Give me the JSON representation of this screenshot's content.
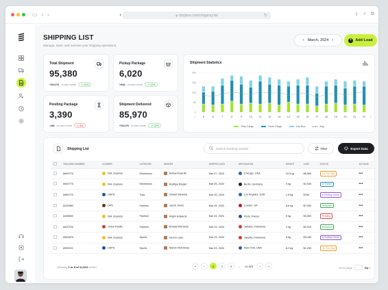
{
  "browser": {
    "url": "dropbox.com/shipping-list",
    "traffic_lights": [
      "#ff5f57",
      "#febc2e",
      "#28c840"
    ]
  },
  "sidebar": {
    "items": [
      "dashboard-icon",
      "truck-icon",
      "document-icon",
      "users-icon",
      "clock-icon",
      "settings-icon"
    ],
    "bottom_items": [
      "headset-icon",
      "gear-icon",
      "logout-icon"
    ],
    "active_index": 2
  },
  "header": {
    "title": "SHIPPING LIST",
    "subtitle": "Manage, track, and oversee your shipping operations.",
    "date_label": "March, 2024",
    "add_button": "Add Load"
  },
  "colors": {
    "accent": "#c8f03c",
    "ship_cargo": "#a6e22e",
    "truck_cargo": "#1f8fb3",
    "car_box": "#7fd4e6",
    "avg": "#9aa0a6"
  },
  "stats": [
    {
      "title": "Total Shipment",
      "value": "95,380",
      "delta": "+19,176",
      "period": "vs last month",
      "pct": "12%",
      "trend": "up",
      "icon": "truck-icon"
    },
    {
      "title": "Pickup Package",
      "value": "6,020",
      "delta": "+442",
      "period": "vs last month",
      "pct": "12%",
      "trend": "up",
      "icon": "basket-icon"
    },
    {
      "title": "Pending Package",
      "value": "3,390",
      "delta": "-136",
      "period": "vs last month",
      "pct": "4%",
      "trend": "down",
      "icon": "hourglass-icon"
    },
    {
      "title": "Shipment Delivered",
      "value": "85,970",
      "delta": "+19,176",
      "period": "vs last month",
      "pct": "12%",
      "trend": "up",
      "icon": "box-icon"
    }
  ],
  "chart": {
    "title": "Shipment Statistics",
    "legend": [
      "Ship Cargo",
      "Truck Cargo",
      "Car Box",
      "Avg"
    ]
  },
  "chart_data": {
    "type": "bar",
    "title": "Shipment Statistics",
    "x": [
      5,
      6,
      7,
      8,
      9,
      10,
      11,
      12,
      13,
      14,
      15,
      16,
      17,
      18,
      19,
      20,
      21,
      22
    ],
    "ylim": [
      0,
      200
    ],
    "y_ticks": [
      "0",
      "5k",
      "10k",
      "15k",
      "20k"
    ],
    "series": [
      {
        "name": "Ship Cargo",
        "values": [
          40,
          35,
          40,
          55,
          40,
          45,
          40,
          45,
          35,
          50,
          40,
          40,
          30,
          40,
          45,
          35,
          40,
          35
        ]
      },
      {
        "name": "Truck Cargo",
        "values": [
          60,
          70,
          95,
          105,
          100,
          80,
          115,
          95,
          100,
          80,
          95,
          95,
          65,
          90,
          90,
          85,
          90,
          95
        ]
      },
      {
        "name": "Car Box",
        "values": [
          30,
          25,
          35,
          25,
          40,
          35,
          30,
          35,
          30,
          25,
          30,
          40,
          35,
          25,
          30,
          35,
          30,
          25
        ]
      },
      {
        "name": "Avg",
        "values": [
          85,
          80,
          92,
          100,
          95,
          88,
          105,
          95,
          98,
          85,
          95,
          95,
          75,
          90,
          92,
          88,
          95,
          105
        ]
      }
    ],
    "grid": true,
    "legend_position": "bottom"
  },
  "table": {
    "title": "Shipping List",
    "search_placeholder": "Search tracking number",
    "filter_label": "Filter",
    "export_label": "Export Data",
    "columns": [
      "TRACKING NUMBER",
      "COURIER",
      "CATEGORY",
      "SENDER",
      "SHIPPED DATE",
      "DESTINATION",
      "WEIGHT",
      "COST",
      "STATUS",
      "ACTIONS"
    ],
    "rows": [
      {
        "tracking": "#609776",
        "courier": "DHL Express",
        "category": "Electronics",
        "sender": "Muhammad Ali",
        "date": "Mar 27, 2024",
        "destination": "Chicago, USA",
        "weight": "24.5 kg",
        "cost": "$5,580",
        "status": "On The Way"
      },
      {
        "tracking": "#540775",
        "courier": "DHL Express",
        "category": "Electronics",
        "sender": "Raditya Rasyid",
        "date": "Mar 25, 2024",
        "destination": "Berlin, Germany",
        "weight": "3 kg",
        "cost": "$2,540",
        "status": "In Transit"
      },
      {
        "tracking": "#980775",
        "courier": "USPS",
        "category": "Toys",
        "sender": "Darrell Steward",
        "date": "Mar 25, 2024",
        "destination": "Los Angeles, USA",
        "weight": "1.5 kg",
        "cost": "$780",
        "status": "In Sorting Centre"
      },
      {
        "tracking": "#230980",
        "courier": "UPS",
        "category": "Fashion",
        "sender": "Jacob Jones",
        "date": "Mar 24, 2024",
        "destination": "London, UK",
        "weight": "8.6 kg",
        "cost": "$7,990",
        "status": "Delivered"
      },
      {
        "tracking": "#445600",
        "courier": "DHL Express",
        "category": "Fashion",
        "sender": "Ralph Edwards",
        "date": "Mar 24, 2024",
        "destination": "Paris, France",
        "weight": "5 kg",
        "cost": "$3,300",
        "status": "Pending"
      },
      {
        "tracking": "#610706",
        "courier": "Union Pacific",
        "category": "Fashion",
        "sender": "Ronald Richards",
        "date": "Mar 24, 2024",
        "destination": "Jakarta, Indonesia",
        "weight": "4 kg",
        "cost": "$2,010",
        "status": "Delivered"
      },
      {
        "tracking": "#542876",
        "courier": "DHL Express",
        "category": "Sports",
        "sender": "Devon Lane",
        "date": "Mar 23, 2024",
        "destination": "Jakarta, Indonesia",
        "weight": "3 kg",
        "cost": "$3,430",
        "status": "In Sorting Centre"
      },
      {
        "tracking": "#990021",
        "courier": "USPS",
        "category": "Sports",
        "sender": "Marvin McKinney",
        "date": "Mar 23, 2024",
        "destination": "New York, USA",
        "weight": "8.2 kg",
        "cost": "$1,230",
        "status": "On The Way"
      }
    ],
    "status_colors": {
      "On The Way": "#e89b1c",
      "In Transit": "#1f8fb3",
      "In Sorting Centre": "#8a4fd8",
      "Delivered": "#3aa655",
      "Pending": "#e0484e"
    },
    "courier_colors": {
      "DHL Express": "#f4c21b",
      "USPS": "#2a4fa8",
      "UPS": "#5a3a1e",
      "Union Pacific": "#d43b32"
    },
    "flag_colors": {
      "Chicago, USA": "#3b5fb0",
      "Berlin, Germany": "#222",
      "Los Angeles, USA": "#3b5fb0",
      "London, UK": "#c8102e",
      "Paris, France": "#2a4fa8",
      "Jakarta, Indonesia": "#d43b32",
      "New York, USA": "#3b5fb0"
    }
  },
  "pagination": {
    "showing_prefix": "Showing",
    "showing_range": "1 to 8 of 11,923",
    "showing_suffix": "entries",
    "pages": [
      "1",
      "2",
      "3",
      "...",
      "11,923"
    ],
    "active_page": "1",
    "goto_label": "Go to page",
    "go_label": "Go"
  }
}
